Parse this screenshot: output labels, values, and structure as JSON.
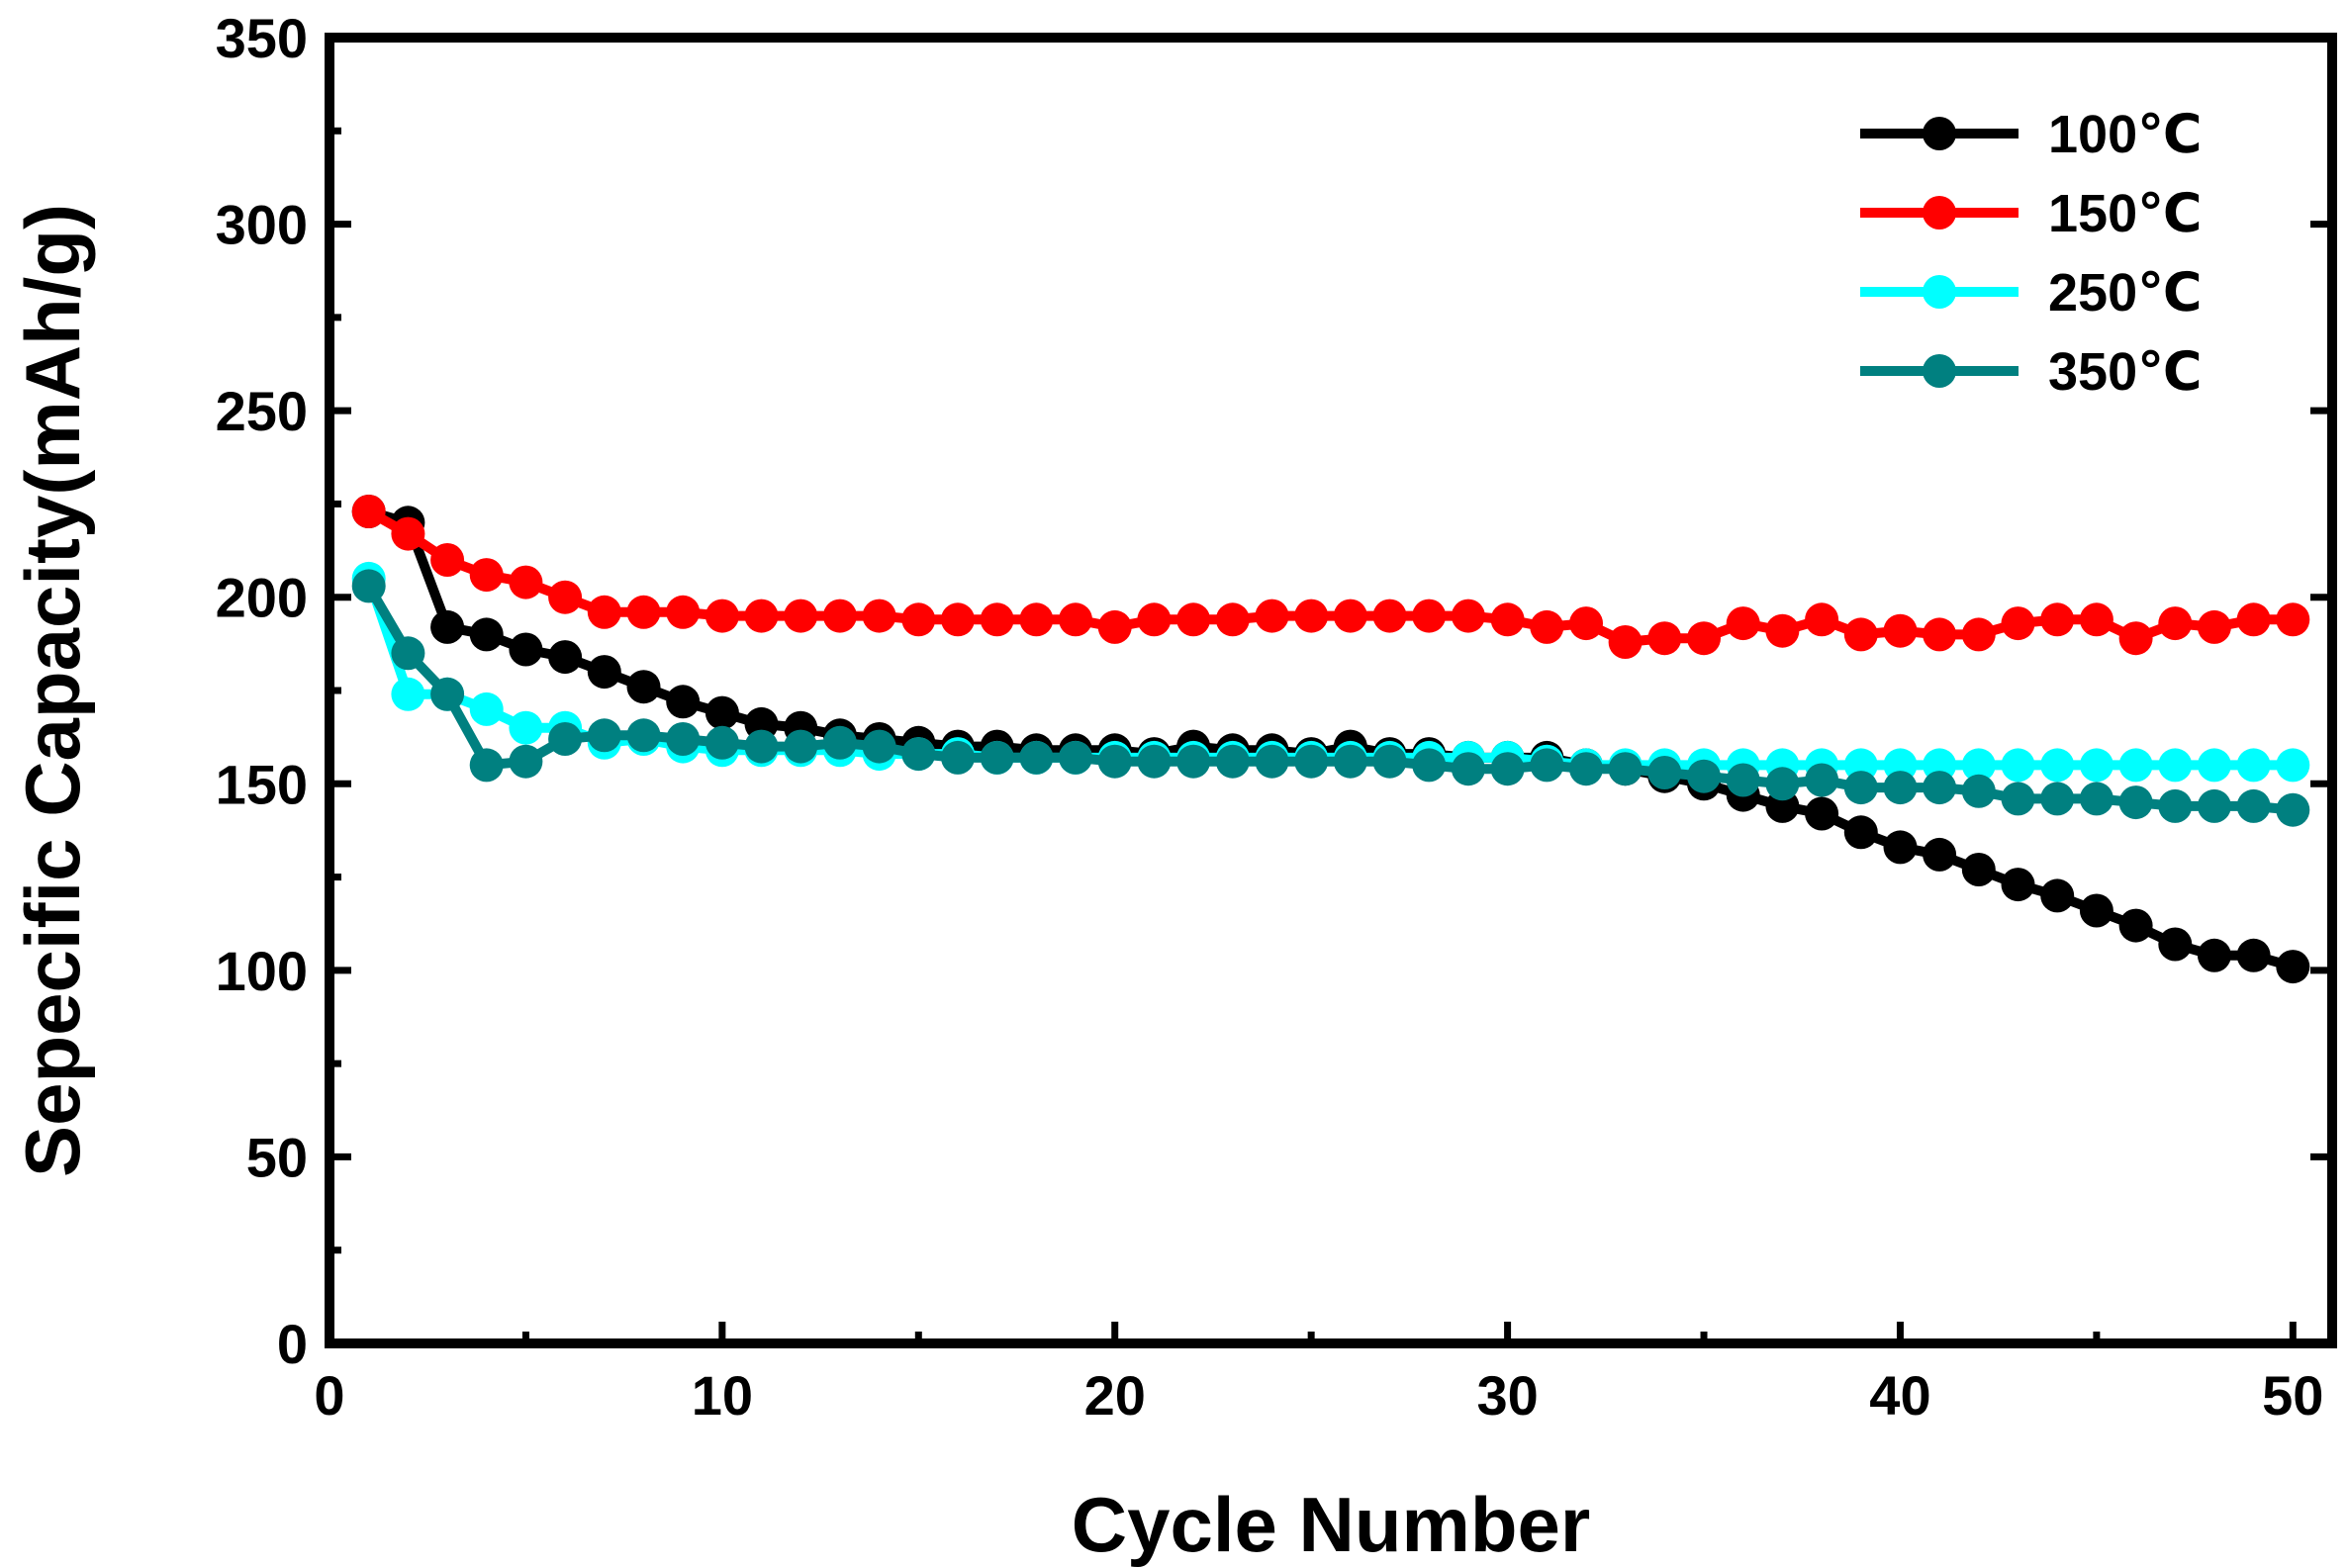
{
  "chart_data": {
    "type": "line",
    "title": "",
    "xlabel": "Cycle Number",
    "ylabel": "Sepecific Capacity(mAh/g)",
    "xlim": [
      0,
      51
    ],
    "ylim": [
      0,
      350
    ],
    "xticks": [
      0,
      10,
      20,
      30,
      40,
      50
    ],
    "xtick_labels": [
      "0",
      "10",
      "20",
      "30",
      "40",
      "50"
    ],
    "yticks": [
      0,
      50,
      100,
      150,
      200,
      250,
      300,
      350
    ],
    "ytick_labels": [
      "0",
      "50",
      "100",
      "150",
      "200",
      "250",
      "300",
      "350"
    ],
    "x_minor_step": 5,
    "y_minor_step": 25,
    "grid": false,
    "legend_position": "top-right",
    "x": [
      1,
      2,
      3,
      4,
      5,
      6,
      7,
      8,
      9,
      10,
      11,
      12,
      13,
      14,
      15,
      16,
      17,
      18,
      19,
      20,
      21,
      22,
      23,
      24,
      25,
      26,
      27,
      28,
      29,
      30,
      31,
      32,
      33,
      34,
      35,
      36,
      37,
      38,
      39,
      40,
      41,
      42,
      43,
      44,
      45,
      46,
      47,
      48,
      49,
      50
    ],
    "series": [
      {
        "name": "100℃",
        "color": "#000000",
        "values": [
          223,
          220,
          192,
          190,
          186,
          184,
          180,
          176,
          172,
          169,
          166,
          165,
          163,
          162,
          161,
          160,
          160,
          159,
          159,
          159,
          158,
          160,
          159,
          159,
          158,
          160,
          158,
          158,
          157,
          157,
          157,
          155,
          154,
          152,
          150,
          147,
          144,
          142,
          137,
          133,
          131,
          127,
          123,
          120,
          116,
          112,
          107,
          104,
          104,
          101
        ]
      },
      {
        "name": "150℃",
        "color": "#ff0000",
        "values": [
          223,
          217,
          210,
          206,
          204,
          200,
          196,
          196,
          196,
          195,
          195,
          195,
          195,
          195,
          194,
          194,
          194,
          194,
          194,
          192,
          194,
          194,
          194,
          195,
          195,
          195,
          195,
          195,
          195,
          194,
          192,
          193,
          188,
          189,
          189,
          193,
          191,
          194,
          190,
          191,
          190,
          190,
          193,
          194,
          194,
          189,
          193,
          192,
          194,
          194
        ]
      },
      {
        "name": "250℃",
        "color": "#00ffff",
        "values": [
          205,
          174,
          174,
          170,
          165,
          165,
          161,
          162,
          160,
          159,
          159,
          159,
          159,
          158,
          158,
          158,
          157,
          157,
          157,
          157,
          157,
          157,
          157,
          157,
          157,
          157,
          157,
          157,
          157,
          157,
          156,
          155,
          155,
          155,
          155,
          155,
          155,
          155,
          155,
          155,
          155,
          155,
          155,
          155,
          155,
          155,
          155,
          155,
          155,
          155
        ]
      },
      {
        "name": "350℃",
        "color": "#008080",
        "values": [
          203,
          185,
          174,
          155,
          156,
          162,
          163,
          163,
          162,
          161,
          160,
          160,
          161,
          160,
          158,
          157,
          157,
          157,
          157,
          156,
          156,
          156,
          156,
          156,
          156,
          156,
          156,
          155,
          154,
          154,
          155,
          154,
          154,
          153,
          152,
          151,
          150,
          151,
          149,
          149,
          149,
          148,
          146,
          146,
          146,
          145,
          144,
          144,
          144,
          143
        ]
      }
    ]
  }
}
